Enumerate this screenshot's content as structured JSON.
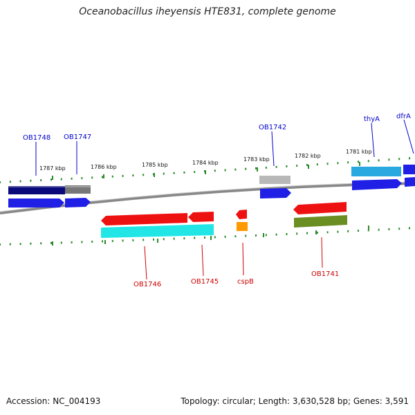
{
  "title": "Oceanobacillus iheyensis HTE831, complete genome",
  "footer": {
    "accession": "Accession: NC_004193",
    "stats": "Topology: circular; Length: 3,630,528 bp; Genes: 3,591"
  },
  "colors": {
    "backbone": "#888888",
    "ticks": "#2a8a2a",
    "label_top": "#0000cc",
    "label_bottom": "#cc0000",
    "blue": "#1f1fe6",
    "navy": "#0a0a7a",
    "grey": "#777777",
    "light_grey": "#b8b8b8",
    "sky": "#29a9e0",
    "red": "#ee1111",
    "cyan": "#22e6e6",
    "orange": "#ff9900",
    "olive": "#6b8e23"
  },
  "kbp_labels": [
    "1787 kbp",
    "1786 kbp",
    "1785 kbp",
    "1784 kbp",
    "1783 kbp",
    "1782 kbp",
    "1781 kbp"
  ],
  "gene_labels_top": [
    "OB1748",
    "OB1747",
    "OB1742",
    "thyA",
    "dfrA"
  ],
  "gene_labels_bottom": [
    "OB1746",
    "OB1745",
    "cspB",
    "OB1741"
  ]
}
